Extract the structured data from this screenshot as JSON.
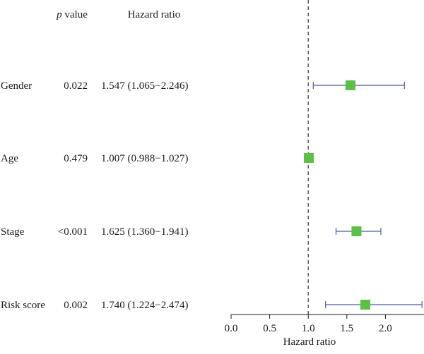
{
  "chart_data": {
    "type": "forest",
    "columns": {
      "p_value": {
        "italic": "p",
        "rest": " value"
      },
      "hazard_ratio": "Hazard ratio"
    },
    "rows": [
      {
        "variable": "Gender",
        "p_value": "0.022",
        "hr_text": "1.547 (1.065−2.246)",
        "hr": 1.547,
        "ci_low": 1.065,
        "ci_high": 2.246
      },
      {
        "variable": "Age",
        "p_value": "0.479",
        "hr_text": "1.007 (0.988−1.027)",
        "hr": 1.007,
        "ci_low": 0.988,
        "ci_high": 1.027
      },
      {
        "variable": "Stage",
        "p_value": "<0.001",
        "hr_text": "1.625 (1.360−1.941)",
        "hr": 1.625,
        "ci_low": 1.36,
        "ci_high": 1.941
      },
      {
        "variable": "Risk score",
        "p_value": "0.002",
        "hr_text": "1.740 (1.224−2.474)",
        "hr": 1.74,
        "ci_low": 1.224,
        "ci_high": 2.474
      }
    ],
    "xlabel": "Hazard ratio",
    "xlim": [
      0.0,
      2.5
    ],
    "xticks": [
      0.0,
      0.5,
      1.0,
      1.5,
      2.0
    ],
    "tick_labels": [
      "0.0",
      "0.5",
      "1.0",
      "1.5",
      "2.0"
    ],
    "reference_line": 1.0,
    "colors": {
      "point": "#5cbf47",
      "interval": "#4a5aa5",
      "reference": "#333333",
      "axis": "#1a1a1a"
    }
  }
}
